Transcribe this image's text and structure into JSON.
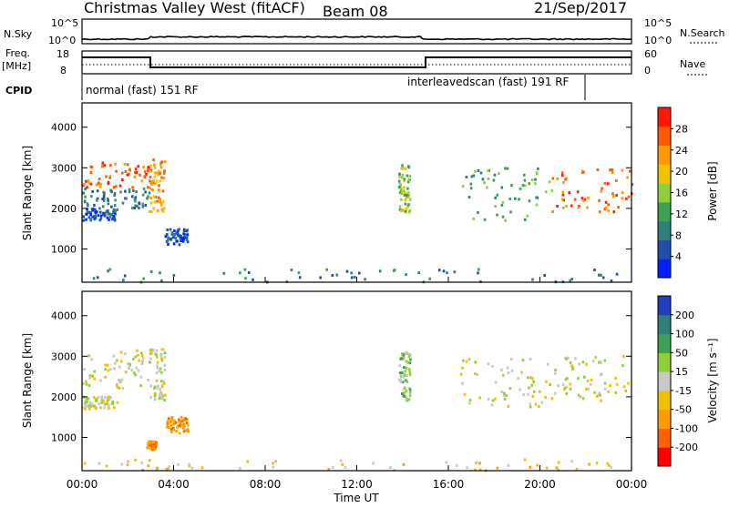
{
  "header": {
    "station": "Christmas Valley West (fitACF)",
    "beam": "Beam 08",
    "date": "21/Sep/2017"
  },
  "noise_panel": {
    "left_label": "N.Sky",
    "right_label": "N.Search",
    "left_ticks": [
      "10^5",
      "10^0"
    ],
    "right_ticks": [
      "10^5",
      "10^0"
    ]
  },
  "freq_panel": {
    "left_label_1": "Freq.",
    "left_label_2": "[MHz]",
    "right_label": "Nave",
    "left_ticks": [
      "18",
      "8"
    ],
    "right_ticks": [
      "60",
      "0"
    ]
  },
  "cpid": {
    "label": "CPID",
    "segments": [
      {
        "start_hour": 0.0,
        "end_hour": 14.8,
        "text": "normal (fast) 151 RF"
      },
      {
        "start_hour": 14.8,
        "end_hour": 21.8,
        "text": "interleavedscan (fast) 191 RF"
      }
    ]
  },
  "chart_data": [
    {
      "type": "heatmap",
      "panel": "power",
      "ylabel": "Slant Range [km]",
      "ylim": [
        180,
        4600
      ],
      "yticks": [
        "1000",
        "2000",
        "3000",
        "4000"
      ],
      "xlim_hours": [
        0,
        24
      ],
      "colorbar_label": "Power [dB]",
      "colorbar_ticks": [
        "28",
        "24",
        "20",
        "16",
        "12",
        "8",
        "4"
      ],
      "colors": [
        "#0022ff",
        "#1f4fa8",
        "#2f7f7a",
        "#3da055",
        "#8fd03a",
        "#f2c200",
        "#ff9a00",
        "#ff5a00",
        "#ff1a00"
      ],
      "scatter_regions": [
        {
          "t0": 0.0,
          "t1": 2.9,
          "r0": 2500,
          "r1": 3150,
          "level": 7
        },
        {
          "t0": 0.0,
          "t1": 2.9,
          "r0": 2000,
          "r1": 2500,
          "level": 2
        },
        {
          "t0": 0.0,
          "t1": 1.5,
          "r0": 1700,
          "r1": 2000,
          "level": 1
        },
        {
          "t0": 2.9,
          "t1": 3.6,
          "r0": 1900,
          "r1": 3200,
          "level": 6
        },
        {
          "t0": 3.6,
          "t1": 4.6,
          "r0": 1100,
          "r1": 1500,
          "level": 1
        },
        {
          "t0": 13.8,
          "t1": 14.3,
          "r0": 1900,
          "r1": 3100,
          "level": 4
        },
        {
          "t0": 16.5,
          "t1": 20.5,
          "r0": 1700,
          "r1": 3000,
          "level": 3
        },
        {
          "t0": 20.5,
          "t1": 24.0,
          "r0": 1900,
          "r1": 3000,
          "level": 7
        },
        {
          "t0": 0.0,
          "t1": 24.0,
          "r0": 180,
          "r1": 500,
          "level": 2
        }
      ]
    },
    {
      "type": "heatmap",
      "panel": "velocity",
      "ylabel": "Slant Range [km]",
      "ylim": [
        180,
        4600
      ],
      "yticks": [
        "1000",
        "2000",
        "3000",
        "4000"
      ],
      "xticks": [
        "00:00",
        "04:00",
        "08:00",
        "12:00",
        "16:00",
        "20:00",
        "00:00"
      ],
      "xlabel": "Time UT",
      "xlim_hours": [
        0,
        24
      ],
      "colorbar_label": "Velocity [m s⁻¹]",
      "colorbar_ticks": [
        "200",
        "100",
        "50",
        "15",
        "-15",
        "-50",
        "-100",
        "-200"
      ],
      "colors": [
        "#ff0000",
        "#ff6000",
        "#ff9a00",
        "#f0c000",
        "#c8c8c8",
        "#8fd03a",
        "#3da055",
        "#2f7f7a",
        "#1f3fbf"
      ],
      "scatter_regions": [
        {
          "t0": 0.0,
          "t1": 2.9,
          "r0": 2200,
          "r1": 3150,
          "level": 4
        },
        {
          "t0": 0.0,
          "t1": 1.5,
          "r0": 1700,
          "r1": 2000,
          "level": 4
        },
        {
          "t0": 2.9,
          "t1": 3.6,
          "r0": 1900,
          "r1": 3200,
          "level": 4
        },
        {
          "t0": 3.6,
          "t1": 4.6,
          "r0": 1100,
          "r1": 1500,
          "level": 2
        },
        {
          "t0": 2.8,
          "t1": 3.2,
          "r0": 700,
          "r1": 900,
          "level": 2
        },
        {
          "t0": 13.8,
          "t1": 14.3,
          "r0": 1900,
          "r1": 3100,
          "level": 5
        },
        {
          "t0": 16.5,
          "t1": 20.5,
          "r0": 1700,
          "r1": 3000,
          "level": 4
        },
        {
          "t0": 20.5,
          "t1": 24.0,
          "r0": 1900,
          "r1": 3000,
          "level": 4
        },
        {
          "t0": 0.0,
          "t1": 24.0,
          "r0": 180,
          "r1": 450,
          "level": 3
        }
      ]
    }
  ]
}
